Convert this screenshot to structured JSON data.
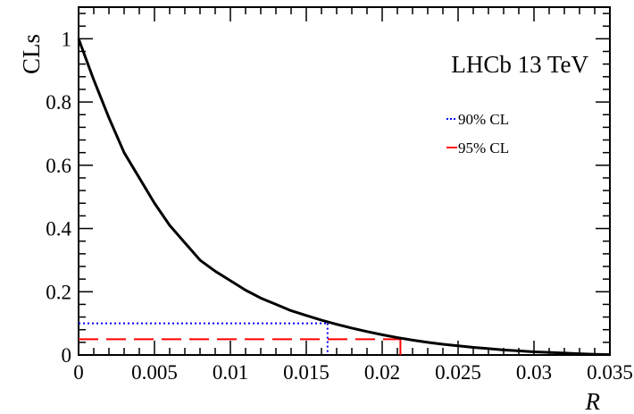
{
  "chart_data": {
    "type": "line",
    "xlabel": "R",
    "ylabel": "CLs",
    "xlim": [
      0,
      0.035
    ],
    "ylim": [
      0,
      1.1
    ],
    "x_ticks": [
      0,
      0.005,
      0.01,
      0.015,
      0.02,
      0.025,
      0.03,
      0.035
    ],
    "x_tick_labels": [
      "0",
      "0.005",
      "0.01",
      "0.015",
      "0.02",
      "0.025",
      "0.03",
      "0.035"
    ],
    "y_ticks": [
      0,
      0.2,
      0.4,
      0.6,
      0.8,
      1
    ],
    "y_tick_labels": [
      "0",
      "0.2",
      "0.4",
      "0.6",
      "0.8",
      "1"
    ],
    "annotation": "LHCb 13 TeV",
    "grid": false,
    "legend_position": "top-right",
    "series": [
      {
        "name": "",
        "color": "#000000",
        "x": [
          0,
          0.001,
          0.002,
          0.003,
          0.004,
          0.005,
          0.006,
          0.007,
          0.008,
          0.009,
          0.01,
          0.011,
          0.012,
          0.013,
          0.014,
          0.015,
          0.016,
          0.017,
          0.018,
          0.019,
          0.02,
          0.021,
          0.022,
          0.023,
          0.024,
          0.025,
          0.026,
          0.027,
          0.028,
          0.029,
          0.03,
          0.031,
          0.032,
          0.033,
          0.034,
          0.035
        ],
        "y": [
          1.0,
          0.87,
          0.75,
          0.64,
          0.56,
          0.48,
          0.41,
          0.355,
          0.3,
          0.265,
          0.235,
          0.205,
          0.18,
          0.16,
          0.14,
          0.125,
          0.11,
          0.097,
          0.085,
          0.074,
          0.064,
          0.055,
          0.047,
          0.04,
          0.034,
          0.029,
          0.024,
          0.02,
          0.016,
          0.013,
          0.01,
          0.008,
          0.006,
          0.004,
          0.002,
          0.001
        ]
      }
    ],
    "limits": [
      {
        "name": "90% CL",
        "color": "#0000ff",
        "style": "dotted",
        "cls": 0.1,
        "x": 0.0164
      },
      {
        "name": "95% CL",
        "color": "#ff0000",
        "style": "dashed",
        "cls": 0.05,
        "x": 0.0212
      }
    ]
  }
}
